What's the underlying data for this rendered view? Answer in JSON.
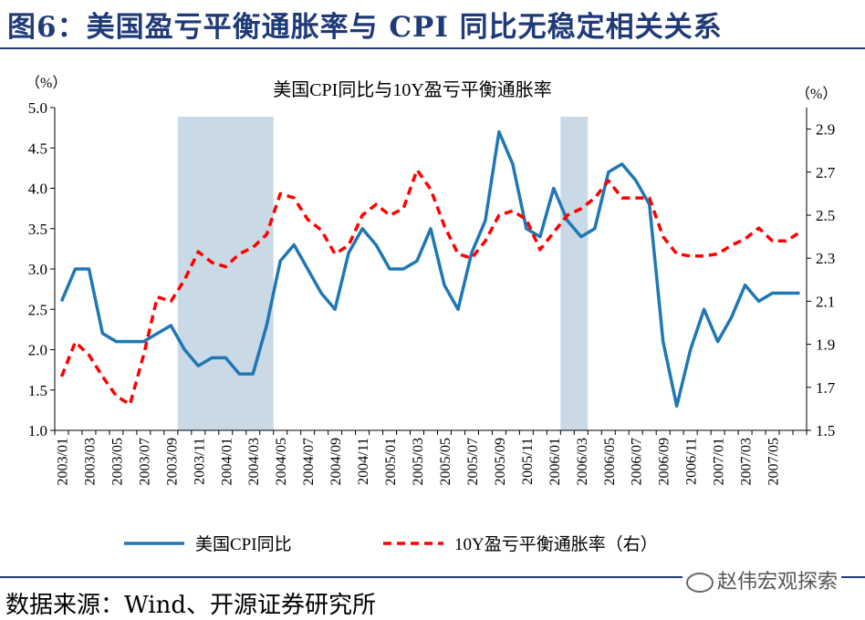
{
  "figure": {
    "title": "图6：美国盈亏平衡通胀率与 CPI 同比无稳定相关关系",
    "source": "数据来源：Wind、开源证券研究所",
    "watermark": "赵伟宏观探索"
  },
  "chart_data": {
    "type": "line",
    "title": "美国CPI同比与10Y盈亏平衡通胀率",
    "left_unit": "（%）",
    "right_unit": "（%）",
    "x": [
      "2003/01",
      "2003/02",
      "2003/03",
      "2003/04",
      "2003/05",
      "2003/06",
      "2003/07",
      "2003/08",
      "2003/09",
      "2003/10",
      "2003/11",
      "2003/12",
      "2004/01",
      "2004/02",
      "2004/03",
      "2004/04",
      "2004/05",
      "2004/06",
      "2004/07",
      "2004/08",
      "2004/09",
      "2004/10",
      "2004/11",
      "2004/12",
      "2005/01",
      "2005/02",
      "2005/03",
      "2005/04",
      "2005/05",
      "2005/06",
      "2005/07",
      "2005/08",
      "2005/09",
      "2005/10",
      "2005/11",
      "2005/12",
      "2006/01",
      "2006/02",
      "2006/03",
      "2006/04",
      "2006/05",
      "2006/06",
      "2006/07",
      "2006/08",
      "2006/09",
      "2006/10",
      "2006/11",
      "2006/12",
      "2007/01",
      "2007/02",
      "2007/03",
      "2007/04",
      "2007/05",
      "2007/06",
      "2007/07"
    ],
    "x_tick_labels": [
      "2003/01",
      "2003/03",
      "2003/05",
      "2003/07",
      "2003/09",
      "2003/11",
      "2004/01",
      "2004/03",
      "2004/05",
      "2004/07",
      "2004/09",
      "2004/11",
      "2005/01",
      "2005/03",
      "2005/05",
      "2005/07",
      "2005/09",
      "2005/11",
      "2006/01",
      "2006/03",
      "2006/05",
      "2006/07",
      "2006/09",
      "2006/11",
      "2007/01",
      "2007/03",
      "2007/05"
    ],
    "y_left": {
      "ylim": [
        1.0,
        5.0
      ],
      "ticks": [
        "1.0",
        "1.5",
        "2.0",
        "2.5",
        "3.0",
        "3.5",
        "4.0",
        "4.5",
        "5.0"
      ]
    },
    "y_right": {
      "ylim": [
        1.5,
        3.0
      ],
      "ticks": [
        "1.5",
        "1.7",
        "1.9",
        "2.1",
        "2.3",
        "2.5",
        "2.7",
        "2.9"
      ]
    },
    "shaded_periods": [
      {
        "start": "2003/10",
        "end": "2004/04"
      },
      {
        "start": "2006/02",
        "end": "2006/03"
      }
    ],
    "series": [
      {
        "name": "美国CPI同比",
        "axis": "left",
        "color": "#1F77B4",
        "style": "solid",
        "values": [
          2.6,
          3.0,
          3.0,
          2.2,
          2.1,
          2.1,
          2.1,
          2.2,
          2.3,
          2.0,
          1.8,
          1.9,
          1.9,
          1.7,
          1.7,
          2.3,
          3.1,
          3.3,
          3.0,
          2.7,
          2.5,
          3.2,
          3.5,
          3.3,
          3.0,
          3.0,
          3.1,
          3.5,
          2.8,
          2.5,
          3.2,
          3.6,
          4.7,
          4.3,
          3.5,
          3.4,
          4.0,
          3.6,
          3.4,
          3.5,
          4.2,
          4.3,
          4.1,
          3.8,
          2.1,
          1.3,
          2.0,
          2.5,
          2.1,
          2.4,
          2.8,
          2.6,
          2.7,
          2.7,
          2.7
        ]
      },
      {
        "name": "10Y盈亏平衡通胀率（右）",
        "axis": "right",
        "color": "#FF0000",
        "style": "dashed",
        "values": [
          1.75,
          1.91,
          1.85,
          1.75,
          1.66,
          1.62,
          1.85,
          2.12,
          2.1,
          2.2,
          2.33,
          2.28,
          2.26,
          2.32,
          2.35,
          2.41,
          2.6,
          2.58,
          2.48,
          2.43,
          2.32,
          2.36,
          2.5,
          2.55,
          2.5,
          2.53,
          2.71,
          2.62,
          2.45,
          2.32,
          2.3,
          2.38,
          2.5,
          2.52,
          2.48,
          2.34,
          2.42,
          2.5,
          2.53,
          2.58,
          2.66,
          2.58,
          2.58,
          2.58,
          2.4,
          2.32,
          2.31,
          2.31,
          2.32,
          2.36,
          2.39,
          2.44,
          2.38,
          2.38,
          2.42
        ]
      }
    ],
    "legend_position": "bottom",
    "grid": false
  }
}
